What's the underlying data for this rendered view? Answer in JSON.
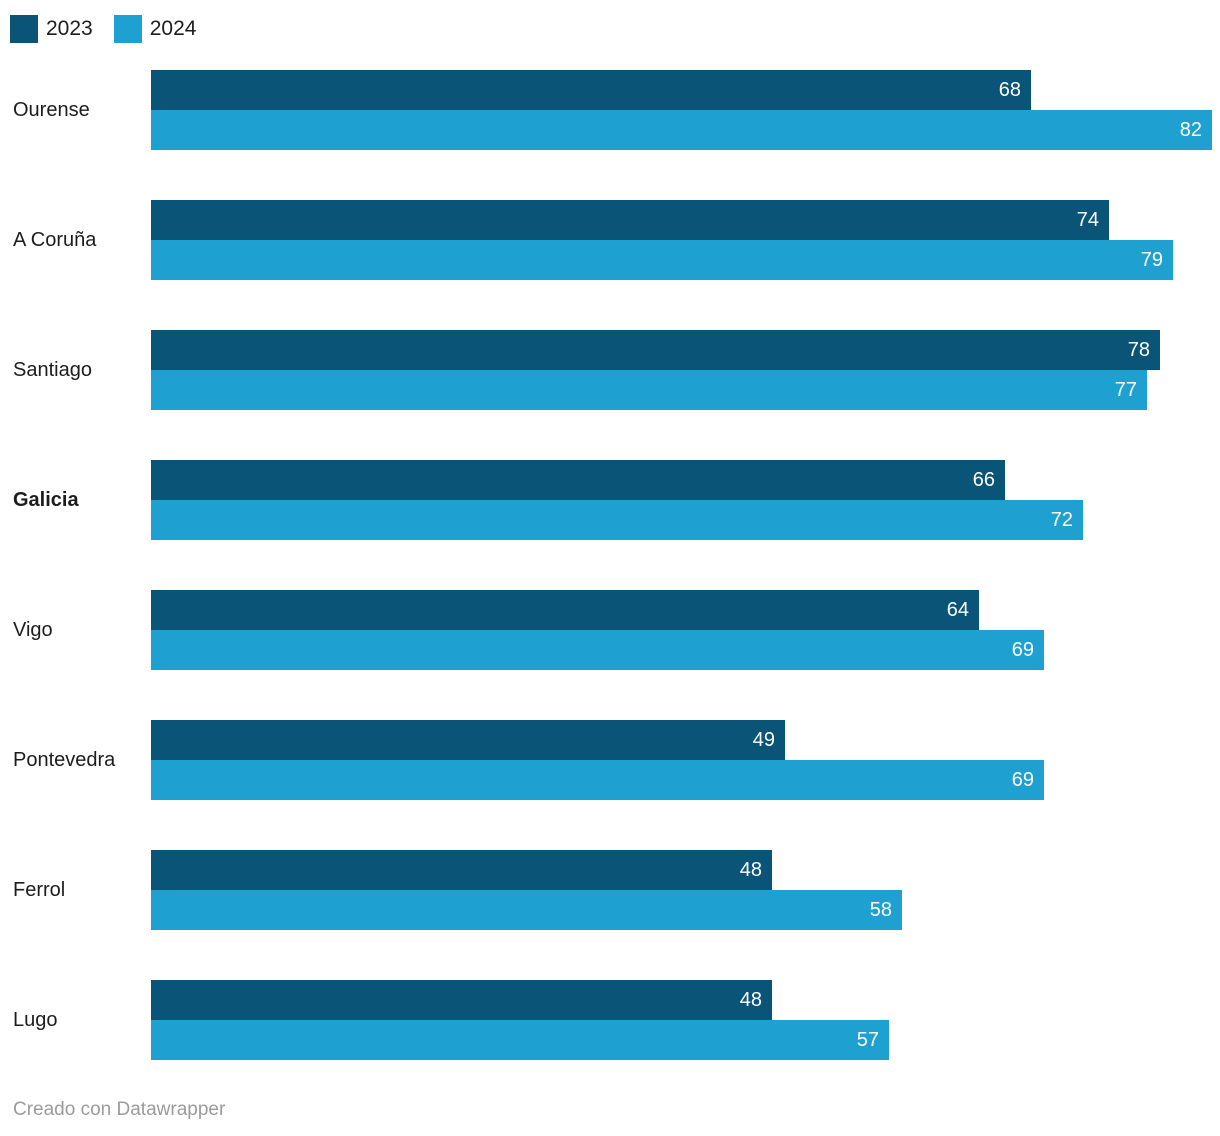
{
  "legend": {
    "items": [
      {
        "label": "2023",
        "color": "#0a5477"
      },
      {
        "label": "2024",
        "color": "#1ea1d0"
      }
    ]
  },
  "footer": {
    "text": "Creado con Datawrapper"
  },
  "chart_data": {
    "type": "bar",
    "orientation": "horizontal",
    "title": "",
    "xlabel": "",
    "ylabel": "",
    "categories": [
      "Ourense",
      "A Coruña",
      "Santiago",
      "Galicia",
      "Vigo",
      "Pontevedra",
      "Ferrol",
      "Lugo"
    ],
    "bold_categories": [
      "Galicia"
    ],
    "series": [
      {
        "name": "2023",
        "color": "#0a5477",
        "values": [
          68,
          74,
          78,
          66,
          64,
          49,
          48,
          48
        ]
      },
      {
        "name": "2024",
        "color": "#1ea1d0",
        "values": [
          82,
          79,
          77,
          72,
          69,
          69,
          58,
          57
        ]
      }
    ],
    "value_labels": "inside-end",
    "xlim": [
      0,
      82.6
    ],
    "grid": false,
    "legend_position": "top-left"
  }
}
